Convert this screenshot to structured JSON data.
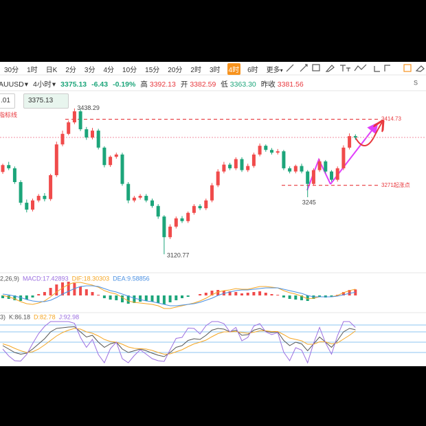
{
  "toolbar": {
    "intervals": [
      "30分",
      "1时",
      "日K",
      "2分",
      "3分",
      "4分",
      "10分",
      "15分",
      "20分",
      "2时",
      "3时",
      "4时",
      "6时",
      "更多"
    ]
  },
  "header": {
    "symbol": "AUUSD",
    "interval": "4小时",
    "price": 3375.13,
    "change": -6.43,
    "change_pct": "-0.19%",
    "stats": [
      {
        "label": "高",
        "value": "3392.13"
      },
      {
        "label": "开",
        "value": "3382.59"
      },
      {
        "label": "低",
        "value": "3363.30"
      },
      {
        "label": "昨收",
        "value": "3381.56"
      }
    ]
  },
  "price_boxes": [
    ".01",
    "3375.13"
  ],
  "chart_data": {
    "type": "candlestick",
    "indicator_label": "指标线",
    "up_color": "#f04b4b",
    "down_color": "#1ca57a",
    "ylim": [
      3091,
      3450
    ],
    "open": [
      3300,
      3315,
      3308,
      3278,
      3233,
      3218,
      3238,
      3248,
      3241,
      3293,
      3360,
      3383,
      3408,
      3432,
      3393,
      3375,
      3390,
      3353,
      3315,
      3333,
      3338,
      3274,
      3238,
      3244,
      3248,
      3238,
      3226,
      3203,
      3158,
      3181,
      3199,
      3193,
      3211,
      3226,
      3221,
      3238,
      3271,
      3301,
      3316,
      3308,
      3328,
      3304,
      3313,
      3338,
      3357,
      3348,
      3342,
      3345,
      3308,
      3301,
      3313,
      3301,
      3274,
      3304,
      3323,
      3301,
      3283,
      3308,
      3353,
      3378
    ],
    "high": [
      3318,
      3322,
      3312,
      3282,
      3240,
      3242,
      3252,
      3254,
      3296,
      3366,
      3390,
      3412,
      3438.29,
      3436,
      3398,
      3396,
      3394,
      3356,
      3336,
      3342,
      3342,
      3278,
      3248,
      3252,
      3252,
      3242,
      3230,
      3206,
      3186,
      3203,
      3204,
      3214,
      3230,
      3230,
      3242,
      3276,
      3306,
      3322,
      3320,
      3332,
      3332,
      3318,
      3342,
      3362,
      3360,
      3352,
      3350,
      3348,
      3312,
      3316,
      3318,
      3304,
      3308,
      3328,
      3326,
      3304,
      3312,
      3358,
      3384,
      3382
    ],
    "low": [
      3296,
      3304,
      3274,
      3228,
      3212,
      3214,
      3234,
      3236,
      3237,
      3289,
      3356,
      3380,
      3404,
      3389,
      3370,
      3371,
      3349,
      3310,
      3311,
      3329,
      3270,
      3232,
      3234,
      3240,
      3234,
      3222,
      3198,
      3120.77,
      3154,
      3177,
      3189,
      3189,
      3207,
      3217,
      3217,
      3234,
      3267,
      3297,
      3304,
      3304,
      3300,
      3300,
      3309,
      3334,
      3344,
      3338,
      3338,
      3304,
      3297,
      3297,
      3297,
      3245,
      3270,
      3300,
      3297,
      3279,
      3279,
      3304,
      3349,
      3370
    ],
    "close": [
      3315,
      3308,
      3278,
      3233,
      3218,
      3238,
      3248,
      3241,
      3293,
      3360,
      3383,
      3408,
      3432,
      3393,
      3375,
      3390,
      3353,
      3315,
      3333,
      3338,
      3274,
      3238,
      3244,
      3248,
      3238,
      3226,
      3203,
      3158,
      3181,
      3199,
      3193,
      3211,
      3226,
      3221,
      3238,
      3271,
      3301,
      3316,
      3308,
      3328,
      3304,
      3313,
      3338,
      3357,
      3348,
      3342,
      3345,
      3308,
      3301,
      3313,
      3301,
      3274,
      3304,
      3323,
      3301,
      3283,
      3308,
      3353,
      3378,
      3375
    ],
    "levels": [
      3414.73,
      {
        "value": 3271,
        "label": "3271起涨点"
      }
    ],
    "level_color": "#e8383d",
    "macd": {
      "label": "2,26,9)",
      "macd_label": "MACD:17.42893",
      "dif_label": "DIF:18.30303",
      "dea_label": "DEA:9.58856",
      "ylim": [
        -40,
        50
      ],
      "hist": [
        -8,
        -10,
        -14,
        -16,
        -12,
        -6,
        4,
        10,
        22,
        32,
        38,
        40,
        36,
        26,
        18,
        10,
        2,
        -8,
        -12,
        -14,
        -20,
        -24,
        -22,
        -18,
        -16,
        -18,
        -22,
        -26,
        -20,
        -14,
        -8,
        -4,
        0,
        4,
        8,
        14,
        16,
        14,
        12,
        10,
        6,
        8,
        10,
        12,
        8,
        4,
        2,
        -6,
        -10,
        -12,
        -14,
        -16,
        -10,
        -4,
        -6,
        -4,
        2,
        10,
        16,
        17.43
      ],
      "dif": [
        0,
        -4,
        -10,
        -18,
        -24,
        -26,
        -22,
        -16,
        -4,
        10,
        22,
        32,
        38,
        38,
        34,
        30,
        24,
        14,
        8,
        4,
        -6,
        -16,
        -20,
        -22,
        -24,
        -26,
        -30,
        -38,
        -38,
        -34,
        -30,
        -26,
        -22,
        -16,
        -8,
        2,
        10,
        14,
        16,
        20,
        18,
        18,
        22,
        26,
        26,
        24,
        22,
        14,
        8,
        4,
        -2,
        -10,
        -8,
        -4,
        -4,
        -4,
        0,
        8,
        14,
        18.3
      ],
      "dea": [
        4,
        2,
        -2,
        -6,
        -12,
        -16,
        -18,
        -18,
        -14,
        -6,
        4,
        12,
        20,
        26,
        28,
        28,
        26,
        20,
        14,
        10,
        4,
        -2,
        -8,
        -12,
        -16,
        -18,
        -22,
        -26,
        -30,
        -30,
        -28,
        -26,
        -24,
        -20,
        -14,
        -8,
        0,
        6,
        10,
        14,
        16,
        16,
        18,
        20,
        22,
        22,
        22,
        18,
        14,
        10,
        6,
        0,
        -4,
        -4,
        -4,
        -4,
        -2,
        2,
        6,
        9.59
      ],
      "dif_color": "#f5a623",
      "dea_color": "#4a90e2"
    },
    "kdj": {
      "label": "3)",
      "k_label": "K:86.18",
      "d_label": "D:82.78",
      "j_label": "J:92.98",
      "ylim": [
        -10,
        110
      ],
      "levels": [
        20,
        50,
        80,
        100
      ],
      "k": [
        40,
        30,
        20,
        15,
        18,
        30,
        45,
        60,
        80,
        90,
        92,
        94,
        95,
        80,
        65,
        70,
        50,
        35,
        45,
        50,
        30,
        20,
        25,
        30,
        25,
        18,
        12,
        8,
        20,
        35,
        40,
        55,
        60,
        58,
        70,
        85,
        90,
        88,
        80,
        85,
        70,
        72,
        85,
        90,
        82,
        78,
        80,
        55,
        40,
        50,
        45,
        25,
        45,
        65,
        50,
        35,
        55,
        80,
        90,
        86.18
      ],
      "d": [
        45,
        40,
        32,
        25,
        20,
        22,
        30,
        42,
        55,
        68,
        78,
        85,
        90,
        88,
        80,
        76,
        68,
        58,
        52,
        50,
        44,
        36,
        32,
        31,
        30,
        26,
        20,
        15,
        16,
        22,
        28,
        37,
        45,
        50,
        56,
        66,
        75,
        80,
        80,
        81,
        78,
        76,
        79,
        83,
        83,
        81,
        81,
        72,
        62,
        58,
        54,
        44,
        44,
        51,
        51,
        45,
        48,
        59,
        70,
        82.78
      ],
      "j": [
        30,
        10,
        -4,
        -5,
        14,
        46,
        75,
        96,
        110,
        110,
        110,
        110,
        105,
        64,
        35,
        58,
        14,
        -10,
        31,
        50,
        2,
        -10,
        11,
        28,
        15,
        2,
        -4,
        -6,
        28,
        61,
        64,
        91,
        90,
        74,
        98,
        110,
        110,
        104,
        80,
        93,
        54,
        64,
        97,
        104,
        80,
        72,
        78,
        21,
        -4,
        34,
        27,
        -10,
        47,
        93,
        48,
        15,
        69,
        110,
        110,
        92.98
      ],
      "k_color": "#555555",
      "d_color": "#f5a623",
      "j_color": "#9b6fe0"
    }
  }
}
